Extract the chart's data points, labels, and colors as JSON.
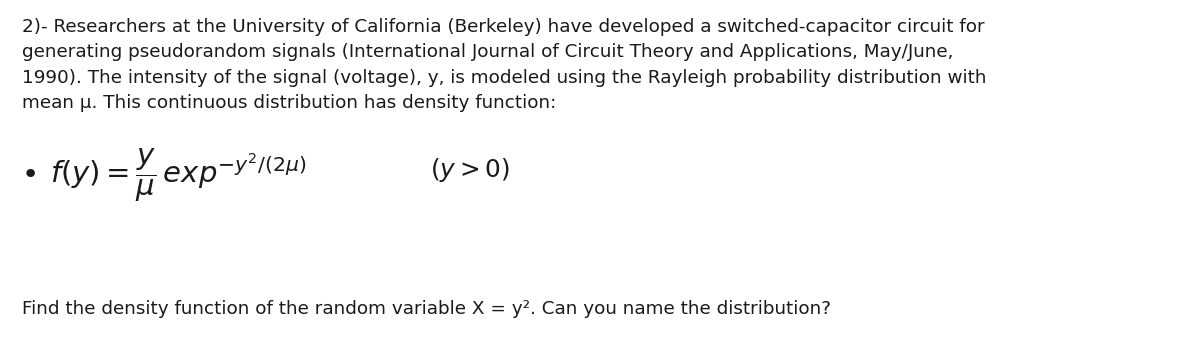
{
  "background_color": "#ffffff",
  "paragraph_text": "2)- Researchers at the University of California (Berkeley) have developed a switched-capacitor circuit for\ngenerating pseudorandom signals (International Journal of Circuit Theory and Applications, May/June,\n1990). The intensity of the signal (voltage), y, is modeled using the Rayleigh probability distribution with\nmean μ. This continuous distribution has density function:",
  "formula_bullet": "•",
  "formula_main": "$f(y) = \\dfrac{y}{\\mu}\\,exp^{-y^2/(2\\mu)}$",
  "formula_condition": "$(y > 0)$",
  "footer_text": "Find the density function of the random variable X = y². Can you name the distribution?",
  "text_color": "#1a1a1a",
  "font_size_body": 13.2,
  "font_size_formula": 21,
  "font_size_footer": 13.2,
  "fig_width": 12.0,
  "fig_height": 3.37,
  "dpi": 100
}
